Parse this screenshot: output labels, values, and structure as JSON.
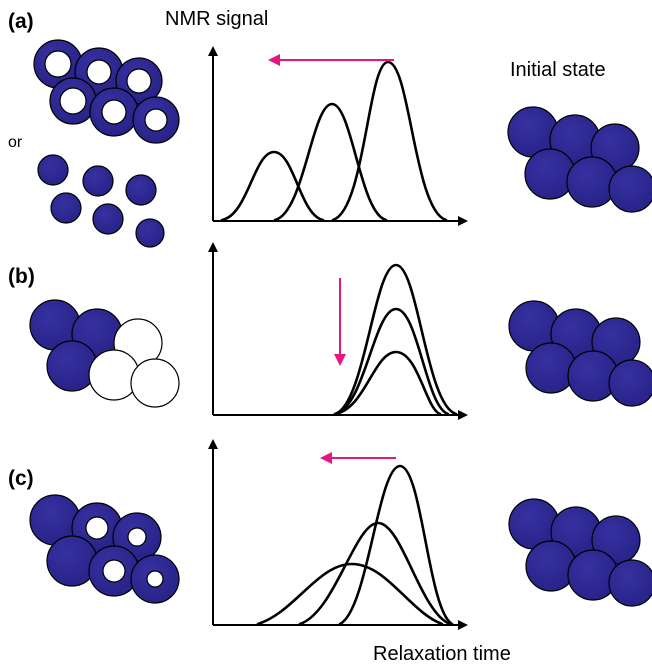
{
  "labels": {
    "panel_a": "(a)",
    "panel_b": "(b)",
    "panel_c": "(c)",
    "or": "or",
    "y_axis": "NMR signal",
    "x_axis": "Relaxation time",
    "initial_state": "Initial state"
  },
  "colors": {
    "grain_fill": "#2e2a8c",
    "grain_fill_light": "#3d36a6",
    "arrow": "#e6157f",
    "stroke": "#000000"
  }
}
